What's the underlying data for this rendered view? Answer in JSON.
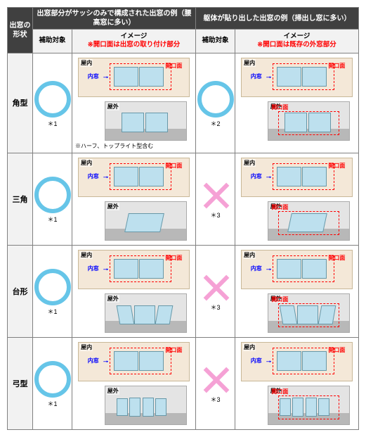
{
  "header": {
    "corner": "出窓の形状",
    "group1": "出窓部分がサッシのみで構成された出窓の例（腰高窓に多い）",
    "group2": "躯体が貼り出した出窓の例（掃出し窓に多い）",
    "sub_elig": "補助対象",
    "sub_img": "イメージ",
    "sub_note1": "※開口面は出窓の取り付け部分",
    "sub_note2": "※開口面は既存の外窓部分"
  },
  "tags": {
    "indoor": "屋内",
    "outdoor": "屋外",
    "open": "開口面",
    "inner": "内窓",
    "half_note": "※ハーフ、トップライト型含む"
  },
  "rows": [
    {
      "shape": "角型",
      "elig1": "yes",
      "note1": "＊1",
      "elig2": "yes",
      "note2": "＊2",
      "type": "rect"
    },
    {
      "shape": "三角",
      "elig1": "yes",
      "note1": "＊1",
      "elig2": "no",
      "note2": "＊3",
      "type": "tri"
    },
    {
      "shape": "台形",
      "elig1": "yes",
      "note1": "＊1",
      "elig2": "no",
      "note2": "＊3",
      "type": "trap"
    },
    {
      "shape": "弓型",
      "elig1": "yes",
      "note1": "＊1",
      "elig2": "no",
      "note2": "＊3",
      "type": "bow"
    }
  ],
  "colors": {
    "circle": "#66c5e8",
    "x": "#f5a1d5",
    "red": "#ff0000",
    "blue": "#0000ff",
    "hdr_bg": "#404040"
  }
}
